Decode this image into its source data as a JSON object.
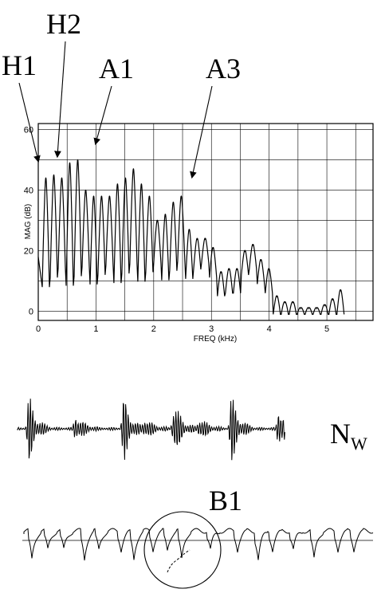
{
  "chart_data": {
    "type": "line",
    "title": "",
    "xlabel": "FREQ (kHz)",
    "ylabel": "MAG (dB)",
    "xlim": [
      0,
      5.8
    ],
    "ylim": [
      -3,
      62
    ],
    "x_ticks": [
      "0",
      "1",
      "2",
      "3",
      "4",
      "5"
    ],
    "y_ticks": [
      "0",
      "20",
      "40",
      "60"
    ],
    "grid": true,
    "series": [
      {
        "harmonic_spacing_khz": 0.138,
        "harmonic_peaks_db": [
          44,
          45,
          44,
          49,
          50,
          40,
          38,
          38,
          38,
          42,
          44,
          47,
          42,
          38,
          30,
          32,
          36,
          38,
          27,
          24,
          24,
          21,
          13,
          14,
          14,
          20,
          22,
          17,
          14,
          5,
          3,
          3,
          1,
          1,
          1,
          2,
          4,
          7
        ],
        "valley_floor_db": 8
      }
    ],
    "annotations": [
      "H1",
      "H2",
      "A1",
      "A3"
    ]
  },
  "waveform_label": "N",
  "waveform_subscript": "W",
  "waveform2_label": "B1"
}
